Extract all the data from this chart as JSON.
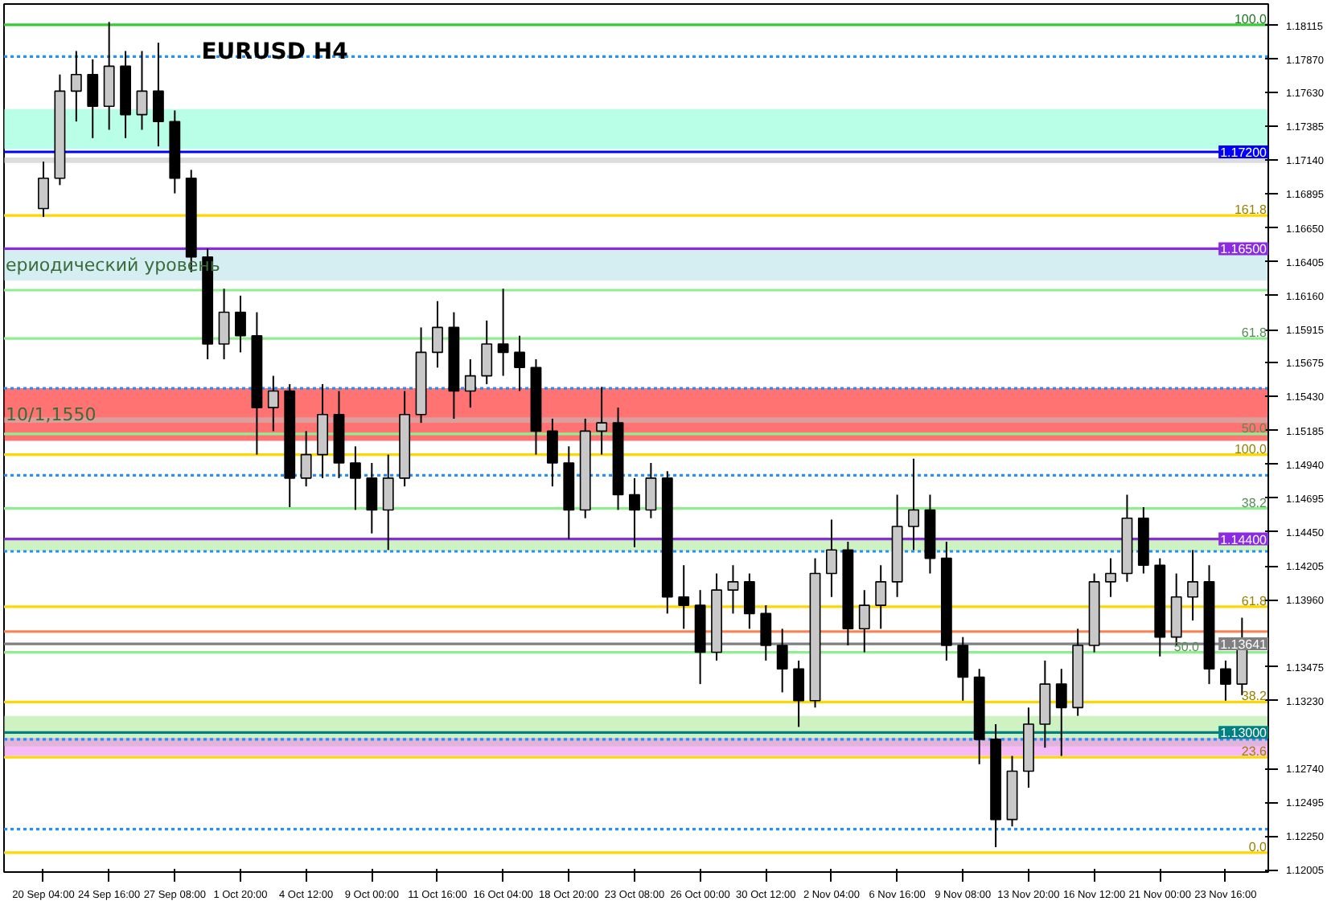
{
  "chart_data": {
    "type": "candlestick",
    "title": "EURUSD H4",
    "categories": [
      "20 Sep 04:00",
      null,
      null,
      null,
      "24 Sep 16:00",
      null,
      null,
      null,
      "27 Sep 08:00",
      null,
      null,
      null,
      "1 Oct 20:00",
      null,
      null,
      null,
      "4 Oct 12:00",
      null,
      null,
      null,
      "9 Oct 00:00",
      null,
      null,
      null,
      "11 Oct 16:00",
      null,
      null,
      null,
      "16 Oct 04:00",
      null,
      null,
      null,
      "18 Oct 20:00",
      null,
      null,
      null,
      "23 Oct 08:00",
      null,
      null,
      null,
      "26 Oct 00:00",
      null,
      null,
      null,
      "30 Oct 12:00",
      null,
      null,
      null,
      "2 Nov 04:00",
      null,
      null,
      null,
      "6 Nov 16:00",
      null,
      null,
      null,
      "9 Nov 08:00",
      null,
      null,
      null,
      "13 Nov 20:00",
      null,
      null,
      null,
      "16 Nov 12:00",
      null,
      null,
      null,
      "21 Nov 00:00",
      null,
      null,
      null,
      "23 Nov 16:00",
      null
    ],
    "ohlc": [
      [
        1.1679,
        1.1713,
        1.1673,
        1.1701
      ],
      [
        1.1701,
        1.1776,
        1.1696,
        1.1764
      ],
      [
        1.1764,
        1.1793,
        1.1742,
        1.1776
      ],
      [
        1.1776,
        1.1787,
        1.173,
        1.1753
      ],
      [
        1.1753,
        1.1814,
        1.1736,
        1.1782
      ],
      [
        1.1782,
        1.1793,
        1.173,
        1.1747
      ],
      [
        1.1747,
        1.1793,
        1.1736,
        1.1764
      ],
      [
        1.1764,
        1.1799,
        1.1724,
        1.1742
      ],
      [
        1.1742,
        1.175,
        1.169,
        1.1701
      ],
      [
        1.1701,
        1.1707,
        1.1633,
        1.1644
      ],
      [
        1.1644,
        1.165,
        1.157,
        1.1581
      ],
      [
        1.1581,
        1.1621,
        1.157,
        1.1604
      ],
      [
        1.1604,
        1.1616,
        1.1575,
        1.1587
      ],
      [
        1.1587,
        1.1604,
        1.1501,
        1.1535
      ],
      [
        1.1535,
        1.1558,
        1.1518,
        1.1547
      ],
      [
        1.1547,
        1.1552,
        1.1463,
        1.1484
      ],
      [
        1.1484,
        1.1518,
        1.1478,
        1.1501
      ],
      [
        1.1501,
        1.1552,
        1.1484,
        1.153
      ],
      [
        1.153,
        1.1547,
        1.1484,
        1.1495
      ],
      [
        1.1495,
        1.1507,
        1.1461,
        1.1484
      ],
      [
        1.1484,
        1.1495,
        1.1444,
        1.1461
      ],
      [
        1.1461,
        1.1501,
        1.1432,
        1.1484
      ],
      [
        1.1484,
        1.1547,
        1.1478,
        1.153
      ],
      [
        1.153,
        1.1593,
        1.1524,
        1.1575
      ],
      [
        1.1575,
        1.1612,
        1.1564,
        1.1593
      ],
      [
        1.1593,
        1.1604,
        1.1527,
        1.1547
      ],
      [
        1.1547,
        1.157,
        1.1535,
        1.1558
      ],
      [
        1.1558,
        1.1598,
        1.1552,
        1.1581
      ],
      [
        1.1581,
        1.1621,
        1.1558,
        1.1575
      ],
      [
        1.1575,
        1.1587,
        1.1547,
        1.1564
      ],
      [
        1.1564,
        1.157,
        1.1501,
        1.1518
      ],
      [
        1.1518,
        1.1527,
        1.1478,
        1.1495
      ],
      [
        1.1495,
        1.1507,
        1.144,
        1.1461
      ],
      [
        1.1461,
        1.1527,
        1.1455,
        1.1518
      ],
      [
        1.1518,
        1.155,
        1.1501,
        1.1524
      ],
      [
        1.1524,
        1.1535,
        1.1461,
        1.1472
      ],
      [
        1.1472,
        1.1484,
        1.1434,
        1.1461
      ],
      [
        1.1461,
        1.1495,
        1.1455,
        1.1484
      ],
      [
        1.1484,
        1.1489,
        1.1386,
        1.1398
      ],
      [
        1.1398,
        1.1421,
        1.1375,
        1.1392
      ],
      [
        1.1392,
        1.1403,
        1.1335,
        1.1358
      ],
      [
        1.1358,
        1.1415,
        1.1352,
        1.1403
      ],
      [
        1.1403,
        1.1421,
        1.1386,
        1.1409
      ],
      [
        1.1409,
        1.1415,
        1.1375,
        1.1386
      ],
      [
        1.1386,
        1.1392,
        1.1352,
        1.1363
      ],
      [
        1.1363,
        1.1375,
        1.1329,
        1.1346
      ],
      [
        1.1346,
        1.1352,
        1.1304,
        1.1323
      ],
      [
        1.1323,
        1.1426,
        1.1318,
        1.1415
      ],
      [
        1.1415,
        1.1454,
        1.1398,
        1.1432
      ],
      [
        1.1432,
        1.1438,
        1.1363,
        1.1375
      ],
      [
        1.1375,
        1.1403,
        1.1358,
        1.1392
      ],
      [
        1.1392,
        1.1421,
        1.1375,
        1.1409
      ],
      [
        1.1409,
        1.1472,
        1.1398,
        1.1449
      ],
      [
        1.1449,
        1.1498,
        1.1432,
        1.1461
      ],
      [
        1.1461,
        1.1472,
        1.1415,
        1.1426
      ],
      [
        1.1426,
        1.1438,
        1.1352,
        1.1363
      ],
      [
        1.1363,
        1.1369,
        1.1323,
        1.134
      ],
      [
        1.134,
        1.1346,
        1.1277,
        1.1295
      ],
      [
        1.1295,
        1.1306,
        1.1217,
        1.1237
      ],
      [
        1.1237,
        1.1283,
        1.1232,
        1.1272
      ],
      [
        1.1272,
        1.1318,
        1.126,
        1.1306
      ],
      [
        1.1306,
        1.1352,
        1.1289,
        1.1335
      ],
      [
        1.1335,
        1.1346,
        1.1283,
        1.1318
      ],
      [
        1.1318,
        1.1375,
        1.1312,
        1.1363
      ],
      [
        1.1363,
        1.1415,
        1.1358,
        1.1409
      ],
      [
        1.1409,
        1.1426,
        1.1398,
        1.1415
      ],
      [
        1.1415,
        1.1472,
        1.1409,
        1.1455
      ],
      [
        1.1455,
        1.1463,
        1.1415,
        1.1421
      ],
      [
        1.1421,
        1.1426,
        1.1355,
        1.1369
      ],
      [
        1.1369,
        1.1415,
        1.1363,
        1.1398
      ],
      [
        1.1398,
        1.1432,
        1.1381,
        1.1409
      ],
      [
        1.1409,
        1.1421,
        1.1335,
        1.1346
      ],
      [
        1.1346,
        1.1352,
        1.1323,
        1.1335
      ],
      [
        1.1335,
        1.1383,
        1.1327,
        1.1363
      ]
    ],
    "ylim": [
      1.1199,
      1.1827
    ],
    "yticks": [
      {
        "value": 1.18115,
        "label": "1.18115"
      },
      {
        "value": 1.1787,
        "label": "1.17870"
      },
      {
        "value": 1.1763,
        "label": "1.17630"
      },
      {
        "value": 1.17385,
        "label": "1.17385"
      },
      {
        "value": 1.1714,
        "label": "1.17140"
      },
      {
        "value": 1.16895,
        "label": "1.16895"
      },
      {
        "value": 1.1665,
        "label": "1.16650"
      },
      {
        "value": 1.16405,
        "label": "1.16405"
      },
      {
        "value": 1.1616,
        "label": "1.16160"
      },
      {
        "value": 1.15915,
        "label": "1.15915"
      },
      {
        "value": 1.15675,
        "label": "1.15675"
      },
      {
        "value": 1.1543,
        "label": "1.15430"
      },
      {
        "value": 1.15185,
        "label": "1.15185"
      },
      {
        "value": 1.1494,
        "label": "1.14940"
      },
      {
        "value": 1.14695,
        "label": "1.14695"
      },
      {
        "value": 1.1445,
        "label": "1.14450"
      },
      {
        "value": 1.14205,
        "label": "1.14205"
      },
      {
        "value": 1.1396,
        "label": "1.13960"
      },
      {
        "value": 1.13475,
        "label": "1.13475"
      },
      {
        "value": 1.1323,
        "label": "1.13230"
      },
      {
        "value": 1.1274,
        "label": "1.12740"
      },
      {
        "value": 1.12495,
        "label": "1.12495"
      },
      {
        "value": 1.1225,
        "label": "1.12250"
      },
      {
        "value": 1.12005,
        "label": "1.12005"
      }
    ],
    "bands": [
      {
        "axis": "y",
        "from": 1.1722,
        "to": 1.1751,
        "color": "#7fffd4"
      },
      {
        "axis": "y",
        "from": 1.1712,
        "to": 1.1716,
        "color": "#c0c0c0"
      },
      {
        "axis": "y",
        "from": 1.1627,
        "to": 1.1649,
        "color": "#b0e0e6",
        "label": "ериодический уровень"
      },
      {
        "axis": "y",
        "from": 1.1511,
        "to": 1.1549,
        "color": "#ff0000",
        "label": "10/1,1550"
      },
      {
        "axis": "y",
        "from": 1.1524,
        "to": 1.1528,
        "color": "#c0c0c0"
      },
      {
        "axis": "y",
        "from": 1.1431,
        "to": 1.144,
        "color": "#a8e890"
      },
      {
        "axis": "y",
        "from": 1.129,
        "to": 1.1312,
        "color": "#a8e890"
      },
      {
        "axis": "y",
        "from": 1.1283,
        "to": 1.1296,
        "color": "#ee82ee"
      }
    ],
    "ref_lines": [
      {
        "axis": "y",
        "value": 1.1812,
        "color": "#33cc33"
      },
      {
        "axis": "y",
        "value": 1.1789,
        "color": "#1e90ff",
        "line_style": "dotted"
      },
      {
        "axis": "y",
        "value": 1.172,
        "label": "1.17200",
        "color": "#0000ff"
      },
      {
        "axis": "y",
        "value": 1.1674,
        "color": "#ffd700"
      },
      {
        "axis": "y",
        "value": 1.165,
        "label": "1.16500",
        "color": "#8a2be2"
      },
      {
        "axis": "y",
        "value": 1.162,
        "color": "#90ee90"
      },
      {
        "axis": "y",
        "value": 1.1585,
        "color": "#90ee90"
      },
      {
        "axis": "y",
        "value": 1.1549,
        "color": "#1e90ff",
        "line_style": "dotted"
      },
      {
        "axis": "y",
        "value": 1.1516,
        "color": "#90ee90"
      },
      {
        "axis": "y",
        "value": 1.1501,
        "color": "#ffd700"
      },
      {
        "axis": "y",
        "value": 1.1486,
        "color": "#1e90ff",
        "line_style": "dotted"
      },
      {
        "axis": "y",
        "value": 1.1462,
        "color": "#90ee90"
      },
      {
        "axis": "y",
        "value": 1.144,
        "label": "1.14400",
        "color": "#8a2be2"
      },
      {
        "axis": "y",
        "value": 1.1431,
        "color": "#1e90ff",
        "line_style": "dotted"
      },
      {
        "axis": "y",
        "value": 1.1391,
        "color": "#ffd700"
      },
      {
        "axis": "y",
        "value": 1.1373,
        "color": "#ff7f50"
      },
      {
        "axis": "y",
        "value": 1.13641,
        "label": "1.13641",
        "color": "#808080"
      },
      {
        "axis": "y",
        "value": 1.1358,
        "color": "#90ee90"
      },
      {
        "axis": "y",
        "value": 1.1322,
        "color": "#ffd700"
      },
      {
        "axis": "y",
        "value": 1.13,
        "label": "1.13000",
        "color": "#008080"
      },
      {
        "axis": "y",
        "value": 1.1295,
        "color": "#1e90ff",
        "line_style": "dotted"
      },
      {
        "axis": "y",
        "value": 1.1282,
        "color": "#ffd700"
      },
      {
        "axis": "y",
        "value": 1.123,
        "color": "#1e90ff",
        "line_style": "dotted"
      },
      {
        "axis": "y",
        "value": 1.1213,
        "color": "#ffd700"
      }
    ],
    "annotations": [
      {
        "text": "100.0",
        "y": 1.1812
      },
      {
        "text": "161.8",
        "y": 1.1674
      },
      {
        "text": "61.8",
        "y": 1.1585
      },
      {
        "text": "50.0",
        "y": 1.1516
      },
      {
        "text": "100.0",
        "y": 1.1501
      },
      {
        "text": "38.2",
        "y": 1.1462
      },
      {
        "text": "61.8",
        "y": 1.1391
      },
      {
        "text": "50.0",
        "y": 1.1358
      },
      {
        "text": "38.2",
        "y": 1.1322
      },
      {
        "text": "23.6",
        "y": 1.1282
      },
      {
        "text": "0.0",
        "y": 1.1213
      }
    ]
  }
}
